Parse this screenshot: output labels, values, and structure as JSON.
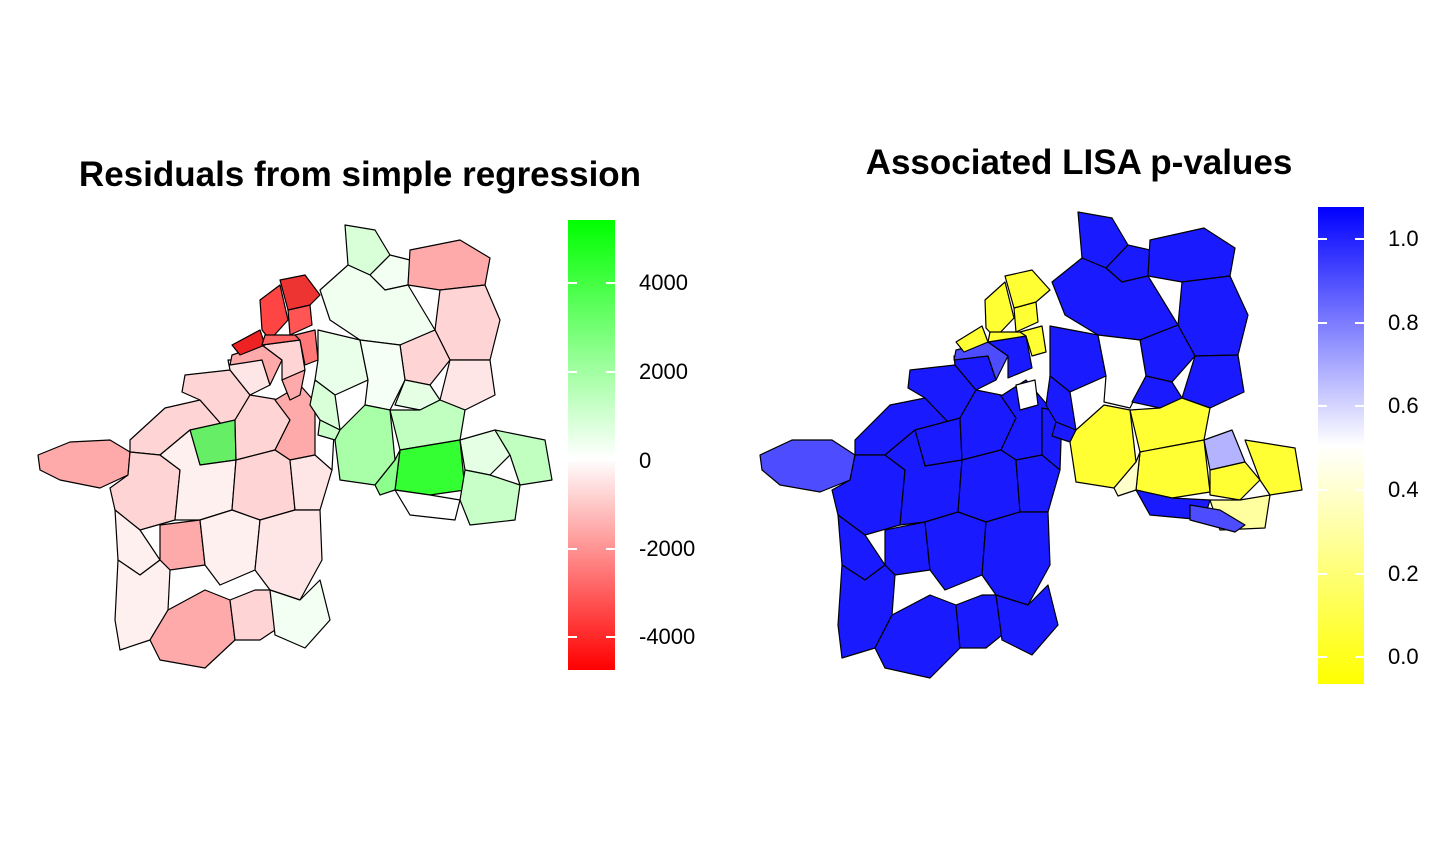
{
  "left_map": {
    "title": "Residuals from simple regression",
    "legend": {
      "ticks": [
        "4000",
        "2000",
        "0",
        "-2000",
        "-4000"
      ],
      "tick_values": [
        4000,
        2000,
        0,
        -2000,
        -4000
      ],
      "range": [
        -4800,
        5400
      ],
      "colors": {
        "high": "#00ff00",
        "mid": "#ffffff",
        "low": "#ff0000"
      }
    }
  },
  "right_map": {
    "title": "Associated LISA p-values",
    "legend": {
      "ticks": [
        "1.0",
        "0.8",
        "0.6",
        "0.4",
        "0.2",
        "0.0"
      ],
      "tick_values": [
        1.0,
        0.8,
        0.6,
        0.4,
        0.2,
        0.0
      ],
      "range": [
        -0.06,
        1.07
      ],
      "colors": {
        "high": "#0000ff",
        "mid": "#ffffff",
        "low": "#ffff00"
      }
    }
  },
  "region_colors": {
    "left_fill_levels": [
      "#ff2a2a",
      "#ff6b6b",
      "#ffaaaa",
      "#ffd4d4",
      "#fff0f0",
      "#ffffff",
      "#eaffea",
      "#c0ffc0",
      "#8cff8c",
      "#33ff33"
    ],
    "right_fill_levels": [
      "#1a1aff",
      "#4d4dff",
      "#b3b3ff",
      "#ffffff",
      "#ffffcc",
      "#ffff33"
    ]
  }
}
